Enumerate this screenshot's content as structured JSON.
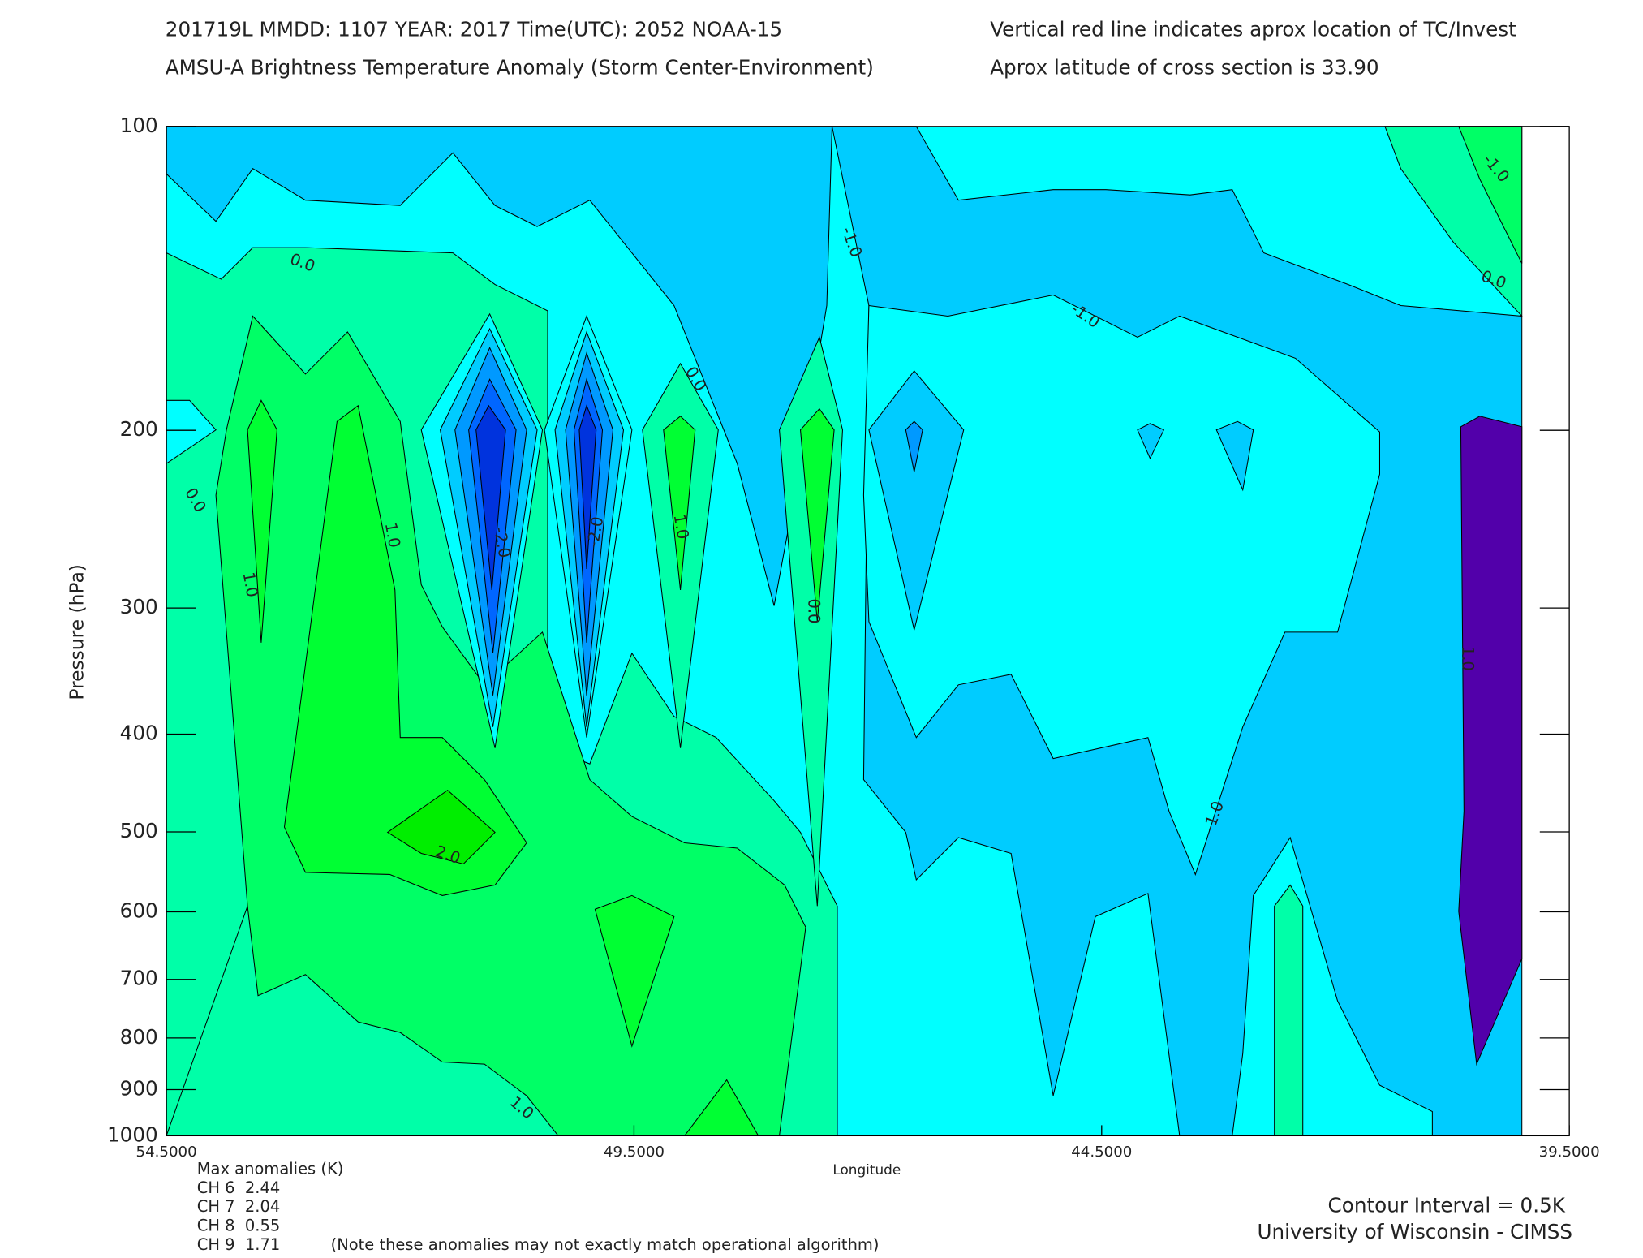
{
  "chart_data": {
    "type": "contour",
    "title_lines": [
      "201719L  MMDD: 1107 YEAR: 2017 Time(UTC): 2052 NOAA-15",
      "AMSU-A Brightness Temperature Anomaly (Storm Center-Environment)"
    ],
    "note_lines": [
      "Vertical red line indicates aprox location of TC/Invest",
      "Aprox latitude of cross section is 33.90"
    ],
    "y_label": "Pressure (hPa)",
    "x_label": "Longitude",
    "ylim": [
      1000,
      100
    ],
    "log_y": true,
    "yticks": [
      100,
      200,
      300,
      400,
      500,
      600,
      700,
      800,
      900,
      1000
    ],
    "xlim": [
      54.5,
      39.5
    ],
    "xticks": [
      {
        "value": 54.5,
        "label": "54.5000"
      },
      {
        "value": 49.5,
        "label": "49.5000"
      },
      {
        "value": 44.5,
        "label": "44.5000"
      },
      {
        "value": 39.5,
        "label": "39.5000"
      }
    ],
    "contour_labels": [
      "0.0",
      "0.0",
      "1.0",
      "1.0",
      "-2.0",
      "-2.0",
      "0.0",
      "1.0",
      "0.0",
      "-1.0",
      "-1.0",
      "-1.0",
      "-1.0",
      "0.0",
      "1.0",
      "2.0",
      "1.0"
    ],
    "max_anomalies": {
      "title": "Max anomalies (K)",
      "rows": [
        "CH 6  2.44",
        "CH 7  2.04",
        "CH 8  0.55",
        "CH 9  1.71"
      ],
      "note": "(Note these anomalies may not exactly match operational algorithm)",
      "color": "#ff4b2b"
    },
    "contour_interval": "Contour Interval = 0.5K",
    "credit": "University of Wisconsin - CIMSS"
  }
}
